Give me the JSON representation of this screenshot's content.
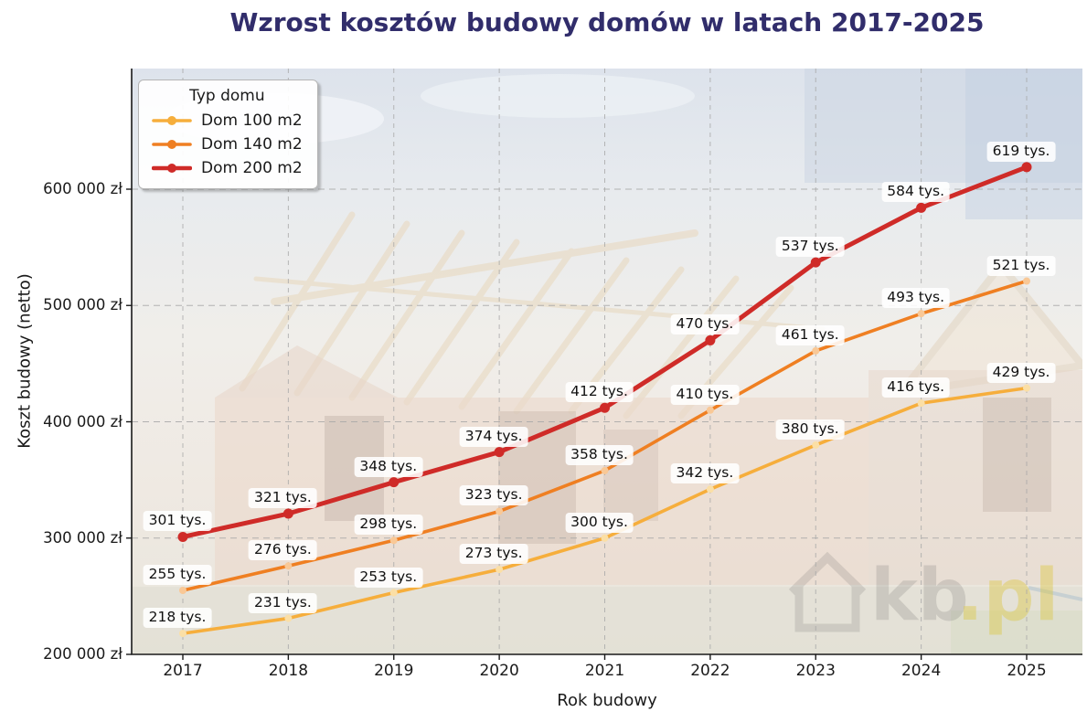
{
  "chart_data": {
    "type": "line",
    "title": "Wzrost kosztów budowy domów w latach 2017-2025",
    "xlabel": "Rok budowy",
    "ylabel": "Koszt budowy (netto)",
    "legend_title": "Typ domu",
    "legend_position": "upper left",
    "grid": true,
    "grid_style": "dashed",
    "unit": "tys. zł (thousands PLN, net)",
    "label_format": "{v} tys.",
    "x": [
      2017,
      2018,
      2019,
      2020,
      2021,
      2022,
      2023,
      2024,
      2025
    ],
    "xticklabels": [
      "2017",
      "2018",
      "2019",
      "2020",
      "2021",
      "2022",
      "2023",
      "2024",
      "2025"
    ],
    "series": [
      {
        "name": "Dom 100 m2",
        "color": "#F6AE3C",
        "marker_color": "#FBDFA6",
        "line_width": 3.6,
        "marker_radius": 4,
        "values_tys": [
          218,
          231,
          253,
          273,
          300,
          342,
          380,
          416,
          429
        ]
      },
      {
        "name": "Dom 140 m2",
        "color": "#EF7F22",
        "marker_color": "#F9C896",
        "line_width": 3.6,
        "marker_radius": 4,
        "values_tys": [
          255,
          276,
          298,
          323,
          358,
          410,
          461,
          493,
          521
        ]
      },
      {
        "name": "Dom 200 m2",
        "color": "#CF2B28",
        "marker_color": "#CF2B28",
        "line_width": 5,
        "marker_radius": 5.5,
        "values_tys": [
          301,
          321,
          348,
          374,
          412,
          470,
          537,
          584,
          619
        ]
      }
    ],
    "yticks": [
      {
        "value_tys": 200,
        "label": "200 000 zł"
      },
      {
        "value_tys": 300,
        "label": "300 000 zł"
      },
      {
        "value_tys": 400,
        "label": "400 000 zł"
      },
      {
        "value_tys": 500,
        "label": "500 000 zł"
      },
      {
        "value_tys": 600,
        "label": "600 000 zł"
      }
    ],
    "ylim_tys": [
      200,
      703
    ]
  },
  "watermark": {
    "icon": "house-icon",
    "text_dark": "kb",
    "text_accent": ".pl"
  },
  "colors": {
    "title": "#312D6B",
    "axis_text": "#1A1A1A",
    "grid": "#A8A8A8",
    "spine": "#1A1A1A",
    "label_box": "#FFFFFF",
    "watermark_dark": "#4A4A4A",
    "watermark_accent": "#DCC63E"
  }
}
